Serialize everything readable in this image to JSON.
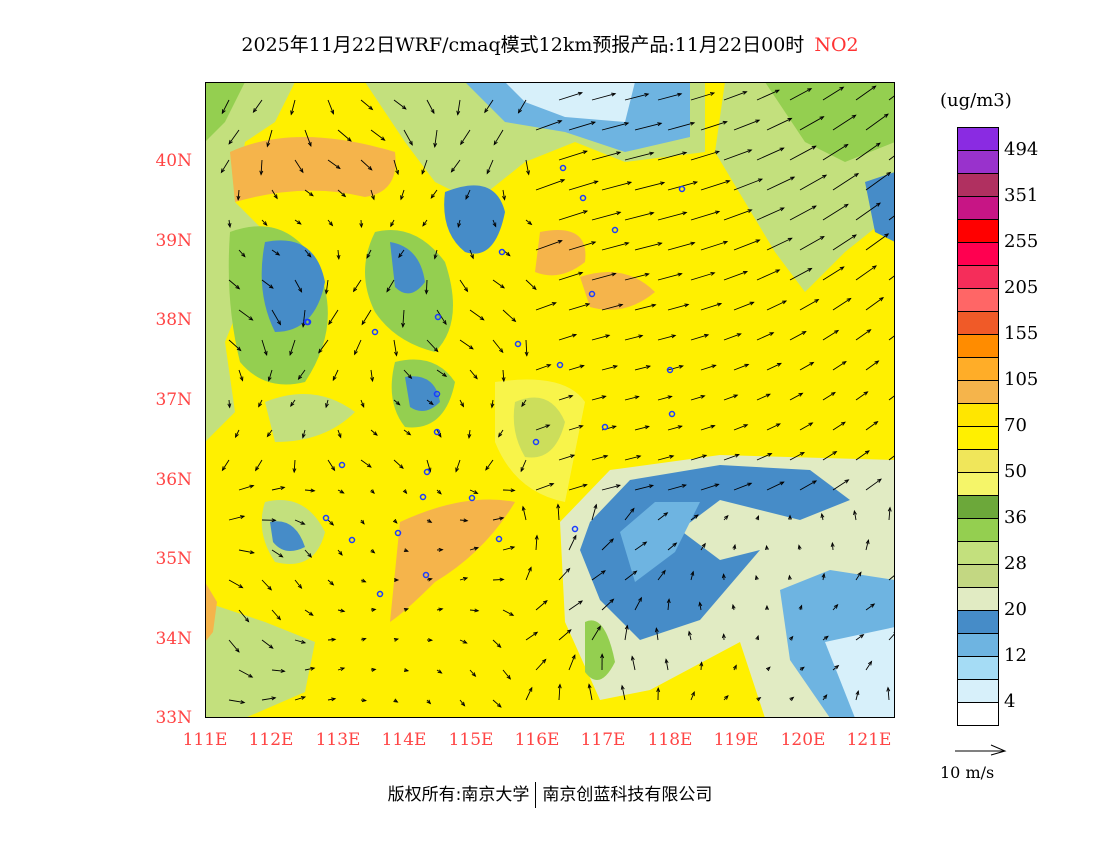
{
  "title": {
    "text": "2025年11月22日WRF/cmaq模式12km预报产品:11月22日00时",
    "pollutant": "NO2"
  },
  "axes": {
    "lat_labels": [
      "40N",
      "39N",
      "38N",
      "37N",
      "36N",
      "35N",
      "34N",
      "33N"
    ],
    "lon_labels": [
      "111E",
      "112E",
      "113E",
      "114E",
      "115E",
      "116E",
      "117E",
      "118E",
      "119E",
      "120E",
      "121E"
    ]
  },
  "colorbar": {
    "unit": "(ug/m3)",
    "labels": [
      "494",
      "351",
      "255",
      "205",
      "155",
      "105",
      "70",
      "50",
      "36",
      "28",
      "20",
      "12",
      "4"
    ],
    "colors": [
      "#8a2be2",
      "#9932cc",
      "#b03060",
      "#c71585",
      "#ff0000",
      "#ff0050",
      "#f52d5a",
      "#ff6666",
      "#f05a28",
      "#ff8c00",
      "#ffad28",
      "#f5b44b",
      "#ffe600",
      "#fff000",
      "#f0e65a",
      "#f5f569",
      "#6ca83a",
      "#94cf50",
      "#c3e07d",
      "#c3d782",
      "#e1ebc3",
      "#468cc8",
      "#6eb4e1",
      "#a5dcf5",
      "#d7f0fa",
      "#ffffff"
    ]
  },
  "wind_reference": "10 m/s",
  "footer": {
    "left": "版权所有:南京大学",
    "right": "南京创蓝科技有限公司"
  }
}
